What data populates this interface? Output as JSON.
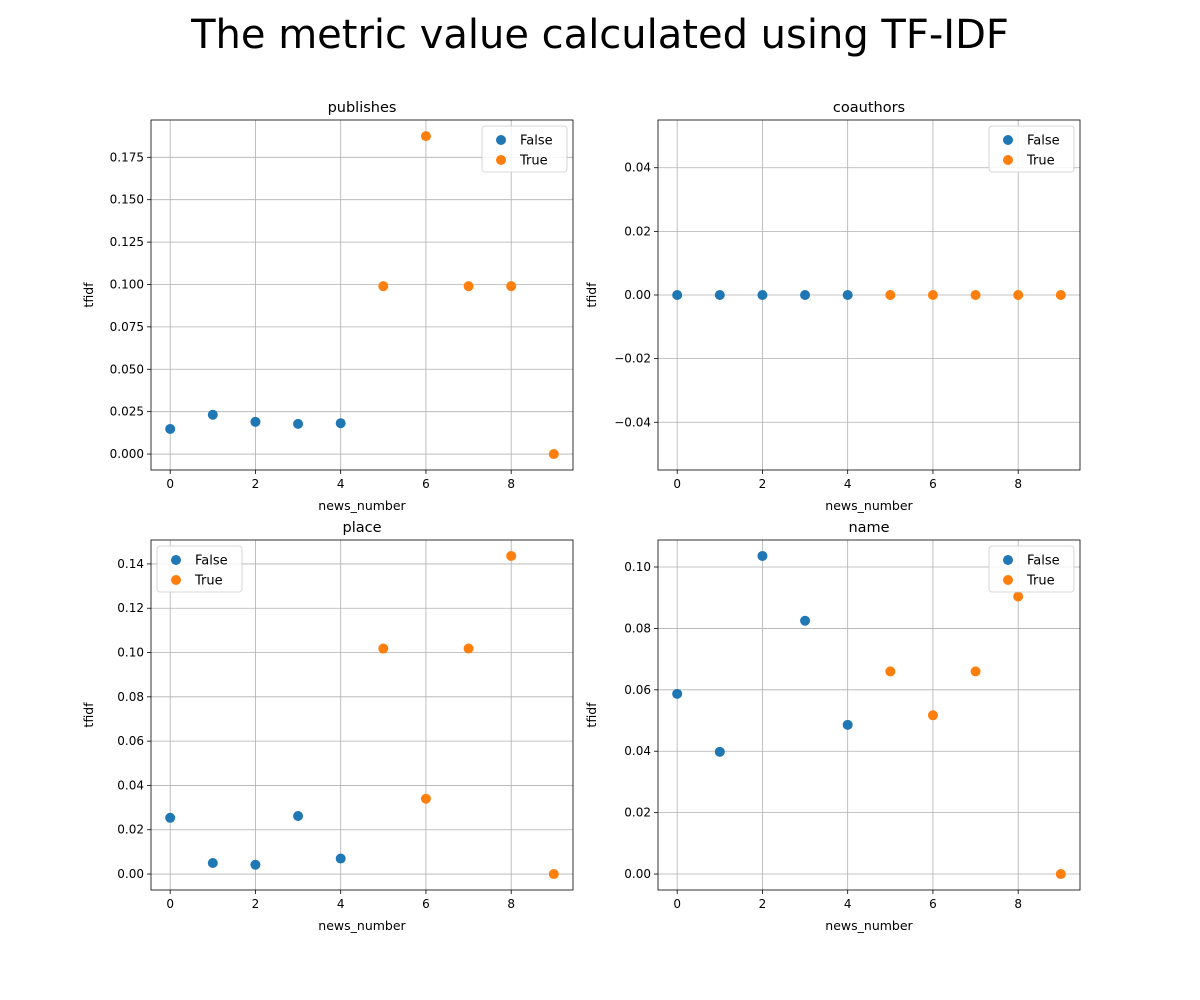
{
  "figure": {
    "title": "The metric value calculated using TF-IDF"
  },
  "chart_data": [
    {
      "type": "scatter",
      "title": "publishes",
      "xlabel": "news_number",
      "ylabel": "tfidf",
      "xlim": [
        -0.45,
        9.45
      ],
      "ylim": [
        -0.0094,
        0.197
      ],
      "xticks": [
        0,
        2,
        4,
        6,
        8
      ],
      "xtick_labels": [
        "0",
        "2",
        "4",
        "6",
        "8"
      ],
      "yticks": [
        0,
        0.025,
        0.05,
        0.075,
        0.1,
        0.125,
        0.15,
        0.175
      ],
      "ytick_labels": [
        "0.000",
        "0.025",
        "0.050",
        "0.075",
        "0.100",
        "0.125",
        "0.150",
        "0.175"
      ],
      "grid": true,
      "legend": "upper right",
      "series": [
        {
          "name": "False",
          "color": "#1f77b4",
          "x": [
            0,
            1,
            2,
            3,
            4
          ],
          "y": [
            0.0148,
            0.0232,
            0.019,
            0.0178,
            0.0182
          ]
        },
        {
          "name": "True",
          "color": "#ff7f0e",
          "x": [
            5,
            6,
            7,
            8,
            9
          ],
          "y": [
            0.099,
            0.1875,
            0.099,
            0.099,
            0.0
          ]
        }
      ]
    },
    {
      "type": "scatter",
      "title": "coauthors",
      "xlabel": "news_number",
      "ylabel": "tfidf",
      "xlim": [
        -0.45,
        9.45
      ],
      "ylim": [
        -0.055,
        0.055
      ],
      "xticks": [
        0,
        2,
        4,
        6,
        8
      ],
      "xtick_labels": [
        "0",
        "2",
        "4",
        "6",
        "8"
      ],
      "yticks": [
        -0.04,
        -0.02,
        0,
        0.02,
        0.04
      ],
      "ytick_labels": [
        "−0.04",
        "−0.02",
        "0.00",
        "0.02",
        "0.04"
      ],
      "grid": true,
      "legend": "upper right",
      "series": [
        {
          "name": "False",
          "color": "#1f77b4",
          "x": [
            0,
            1,
            2,
            3,
            4
          ],
          "y": [
            0,
            0,
            0,
            0,
            0
          ]
        },
        {
          "name": "True",
          "color": "#ff7f0e",
          "x": [
            5,
            6,
            7,
            8,
            9
          ],
          "y": [
            0,
            0,
            0,
            0,
            0
          ]
        }
      ]
    },
    {
      "type": "scatter",
      "title": "place",
      "xlabel": "news_number",
      "ylabel": "tfidf",
      "xlim": [
        -0.45,
        9.45
      ],
      "ylim": [
        -0.0072,
        0.1508
      ],
      "xticks": [
        0,
        2,
        4,
        6,
        8
      ],
      "xtick_labels": [
        "0",
        "2",
        "4",
        "6",
        "8"
      ],
      "yticks": [
        0,
        0.02,
        0.04,
        0.06,
        0.08,
        0.1,
        0.12,
        0.14
      ],
      "ytick_labels": [
        "0.00",
        "0.02",
        "0.04",
        "0.06",
        "0.08",
        "0.10",
        "0.12",
        "0.14"
      ],
      "grid": true,
      "legend": "upper left",
      "series": [
        {
          "name": "False",
          "color": "#1f77b4",
          "x": [
            0,
            1,
            2,
            3,
            4
          ],
          "y": [
            0.0254,
            0.005,
            0.0042,
            0.0262,
            0.007
          ]
        },
        {
          "name": "True",
          "color": "#ff7f0e",
          "x": [
            5,
            6,
            7,
            8,
            9
          ],
          "y": [
            0.1018,
            0.034,
            0.1018,
            0.1436,
            0.0
          ]
        }
      ]
    },
    {
      "type": "scatter",
      "title": "name",
      "xlabel": "news_number",
      "ylabel": "tfidf",
      "xlim": [
        -0.45,
        9.45
      ],
      "ylim": [
        -0.0052,
        0.1088
      ],
      "xticks": [
        0,
        2,
        4,
        6,
        8
      ],
      "xtick_labels": [
        "0",
        "2",
        "4",
        "6",
        "8"
      ],
      "yticks": [
        0,
        0.02,
        0.04,
        0.06,
        0.08,
        0.1
      ],
      "ytick_labels": [
        "0.00",
        "0.02",
        "0.04",
        "0.06",
        "0.08",
        "0.10"
      ],
      "grid": true,
      "legend": "upper right",
      "series": [
        {
          "name": "False",
          "color": "#1f77b4",
          "x": [
            0,
            1,
            2,
            3,
            4
          ],
          "y": [
            0.0587,
            0.0398,
            0.1036,
            0.0825,
            0.0486
          ]
        },
        {
          "name": "True",
          "color": "#ff7f0e",
          "x": [
            5,
            6,
            7,
            8,
            9
          ],
          "y": [
            0.066,
            0.0517,
            0.066,
            0.0904,
            0.0
          ]
        }
      ]
    }
  ]
}
